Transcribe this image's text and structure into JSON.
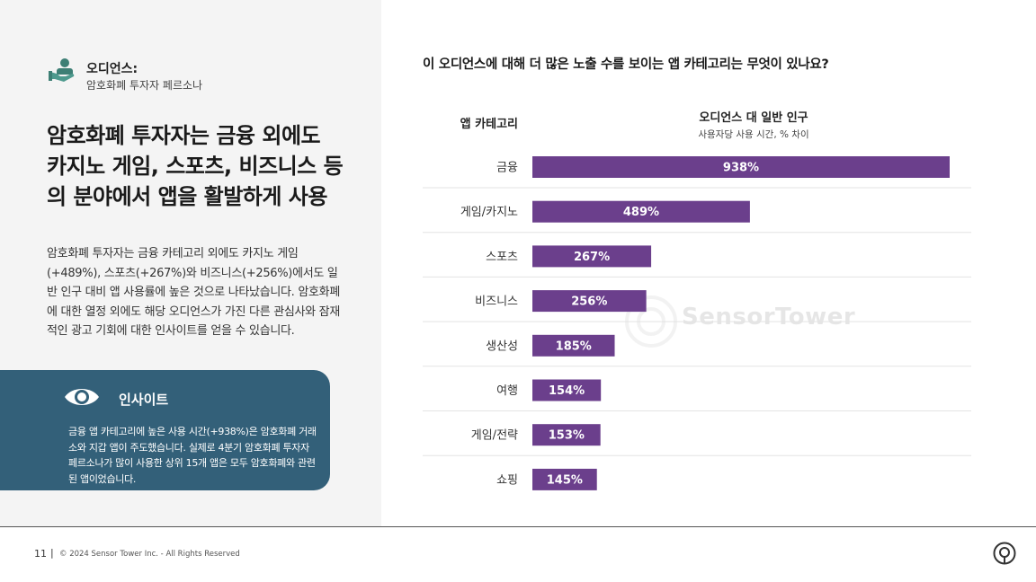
{
  "audience": {
    "label": "오디언스:",
    "value": "암호화폐 투자자 페르소나"
  },
  "headline": "암호화폐 투자자는 금융 외에도 카지노 게임, 스포츠, 비즈니스 등의 분야에서 앱을 활발하게 사용",
  "body": "암호화폐 투자자는 금융 카테고리 외에도 카지노 게임(+489%), 스포츠(+267%)와 비즈니스(+256%)에서도 일반 인구 대비 앱 사용률에 높은 것으로 나타났습니다. 암호화폐에 대한 열정 외에도 해당 오디언스가 가진 다른 관심사와 잠재적인 광고 기회에 대한 인사이트를 얻을 수 있습니다.",
  "insight": {
    "title": "인사이트",
    "text": "금융 앱 카테고리에 높은 사용 시간(+938%)은 암호화폐 거래소와 지갑 앱이 주도했습니다. 실제로 4분기 암호화폐 투자자 페르소나가 많이 사용한 상위 15개 앱은 모두 암호화폐와 관련된 앱이었습니다."
  },
  "question": "이 오디언스에 대해 더 많은 노출 수를 보이는 앱 카테고리는 무엇이 있나요?",
  "columns": {
    "category": "앱 카테고리",
    "metric": "오디언스 대 일반 인구",
    "metric_sub": "사용자당 사용 시간, % 차이"
  },
  "chart_data": {
    "type": "bar",
    "orientation": "horizontal",
    "categories": [
      "금융",
      "게임/카지노",
      "스포츠",
      "비즈니스",
      "생산성",
      "여행",
      "게임/전략",
      "쇼핑"
    ],
    "values": [
      938,
      489,
      267,
      256,
      185,
      154,
      153,
      145
    ],
    "value_labels": [
      "938%",
      "489%",
      "267%",
      "256%",
      "185%",
      "154%",
      "153%",
      "145%"
    ],
    "unit": "%",
    "bar_color": "#6b3f8c",
    "xlim": [
      0,
      938
    ],
    "grid": false
  },
  "watermark": "SensorTower",
  "footer": {
    "page": "11",
    "separator": "|",
    "copyright": "© 2024 Sensor Tower Inc. - All Rights Reserved"
  },
  "colors": {
    "panel_bg": "#f4f4f4",
    "insight_bg": "#336079",
    "accent_icon": "#3d7f75"
  }
}
